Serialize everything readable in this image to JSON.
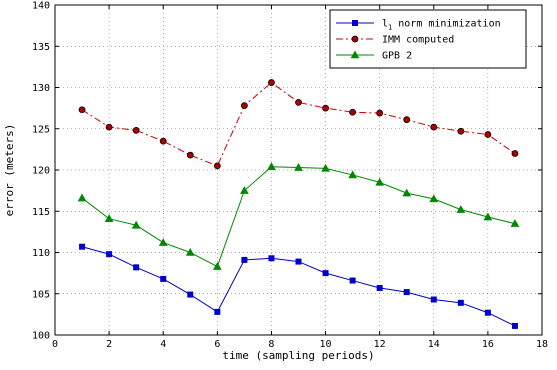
{
  "chart_data": {
    "type": "line",
    "xlabel": "time (sampling periods)",
    "ylabel": "error (meters)",
    "xlim": [
      0,
      18
    ],
    "ylim": [
      100,
      140
    ],
    "xticks": [
      0,
      2,
      4,
      6,
      8,
      10,
      12,
      14,
      16,
      18
    ],
    "yticks": [
      100,
      105,
      110,
      115,
      120,
      125,
      130,
      135,
      140
    ],
    "grid": true,
    "legend_position": "top-right",
    "x": [
      1,
      2,
      3,
      4,
      5,
      6,
      7,
      8,
      9,
      10,
      11,
      12,
      13,
      14,
      15,
      16,
      17
    ],
    "series": [
      {
        "name_main": "l",
        "name_sub": "1",
        "name_rest": " norm minimization",
        "color": "#0000cc",
        "line_style": "solid",
        "marker": "square",
        "values": [
          110.7,
          109.8,
          108.2,
          106.8,
          104.9,
          102.8,
          109.1,
          109.3,
          108.9,
          107.5,
          106.6,
          105.7,
          105.2,
          104.3,
          103.9,
          102.7,
          101.1
        ]
      },
      {
        "name_main": "IMM computed",
        "color": "#cc0000",
        "line_style": "dash-dot",
        "marker": "circle",
        "values": [
          127.3,
          125.2,
          124.8,
          123.5,
          121.8,
          120.5,
          127.8,
          130.6,
          128.2,
          127.5,
          127.0,
          126.9,
          126.1,
          125.2,
          124.7,
          124.3,
          122.0
        ]
      },
      {
        "name_main": "GPB 2",
        "color": "#008800",
        "line_style": "solid",
        "marker": "triangle",
        "values": [
          116.6,
          114.1,
          113.3,
          111.2,
          110.0,
          108.3,
          117.5,
          120.4,
          120.3,
          120.2,
          119.4,
          118.5,
          117.2,
          116.5,
          115.2,
          114.3,
          113.5
        ]
      }
    ]
  }
}
